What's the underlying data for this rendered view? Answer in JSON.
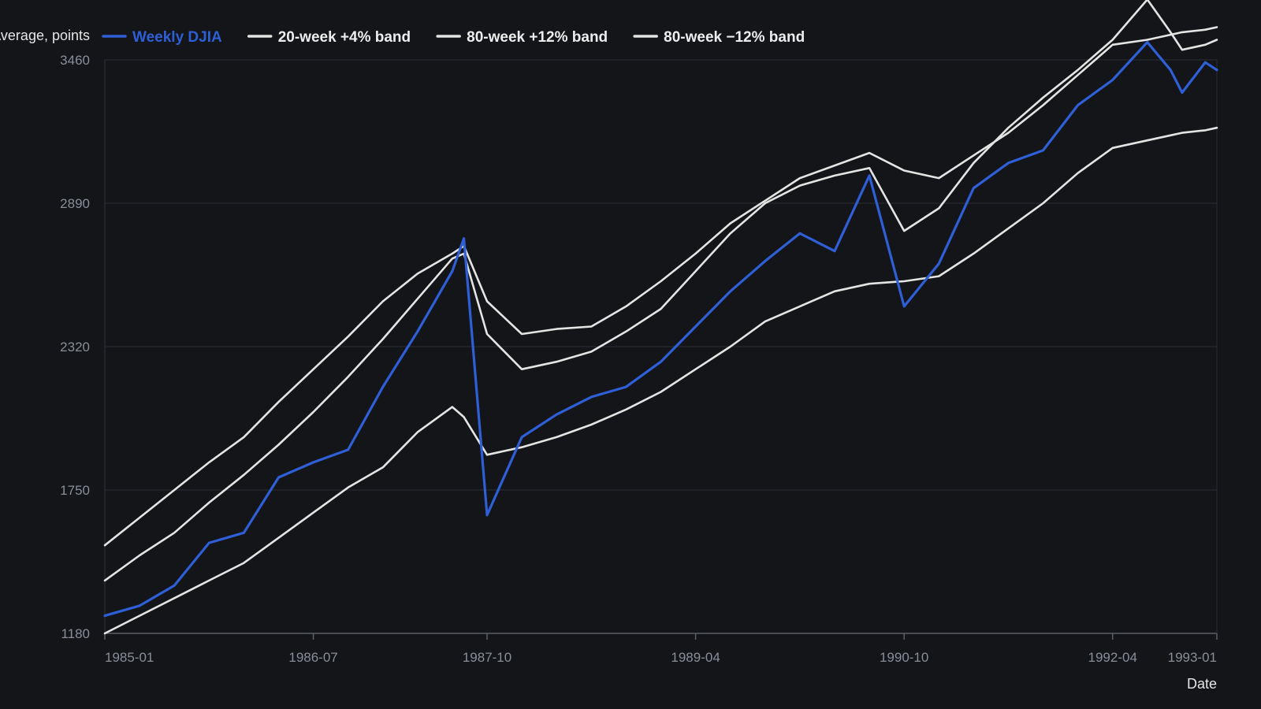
{
  "chart_data": {
    "type": "line",
    "xlabel": "Date",
    "ylabel": "Dow Jones Industrial Average, points",
    "x_tick_labels": [
      "1985-01",
      "1986-07",
      "1987-10",
      "1989-04",
      "1990-10",
      "1992-04",
      "1993-01"
    ],
    "y_ticks": [
      1180,
      1750,
      2320,
      2890,
      3460
    ],
    "ylim": [
      1180,
      3460
    ],
    "xlim": [
      "1985-01",
      "1993-01"
    ],
    "grid": true,
    "legend_position": "top",
    "x": [
      "1985-01",
      "1985-04",
      "1985-07",
      "1985-10",
      "1986-01",
      "1986-04",
      "1986-07",
      "1986-10",
      "1987-01",
      "1987-04",
      "1987-07",
      "1987-08",
      "1987-10",
      "1988-01",
      "1988-04",
      "1988-07",
      "1988-10",
      "1989-01",
      "1989-04",
      "1989-07",
      "1989-10",
      "1990-01",
      "1990-04",
      "1990-07",
      "1990-10",
      "1991-01",
      "1991-04",
      "1991-07",
      "1991-10",
      "1992-01",
      "1992-04",
      "1992-07",
      "1992-09",
      "1992-10",
      "1992-12",
      "1993-01"
    ],
    "series": [
      {
        "name": "Weekly DJIA",
        "color": "#2f5fd6",
        "values": [
          1250,
          1290,
          1370,
          1540,
          1580,
          1800,
          1860,
          1910,
          2160,
          2380,
          2620,
          2750,
          1650,
          1960,
          2050,
          2120,
          2160,
          2260,
          2400,
          2540,
          2660,
          2770,
          2700,
          3000,
          2480,
          2650,
          2950,
          3050,
          3100,
          3280,
          3380,
          3530,
          3420,
          3330,
          3450,
          3420
        ]
      },
      {
        "name": "20-week +4% band",
        "color": "#e4e4e2",
        "values": [
          1390,
          1490,
          1580,
          1700,
          1810,
          1930,
          2060,
          2200,
          2350,
          2510,
          2670,
          2690,
          2370,
          2230,
          2260,
          2300,
          2380,
          2470,
          2620,
          2770,
          2890,
          2960,
          3000,
          3030,
          2780,
          2870,
          3050,
          3190,
          3310,
          3420,
          3540,
          3700,
          3570,
          3500,
          3520,
          3540
        ]
      },
      {
        "name": "80-week +12% band",
        "color": "#e4e4e2",
        "values": [
          1530,
          1640,
          1750,
          1860,
          1960,
          2100,
          2230,
          2360,
          2500,
          2610,
          2690,
          2720,
          2500,
          2370,
          2390,
          2400,
          2480,
          2580,
          2690,
          2810,
          2900,
          2990,
          3040,
          3090,
          3020,
          2990,
          3080,
          3170,
          3280,
          3400,
          3520,
          3540,
          3560,
          3570,
          3580,
          3590
        ]
      },
      {
        "name": "80-week −12% band",
        "color": "#e4e4e2",
        "values": [
          1180,
          1250,
          1320,
          1390,
          1460,
          1560,
          1660,
          1760,
          1840,
          1980,
          2080,
          2040,
          1890,
          1920,
          1960,
          2010,
          2070,
          2140,
          2230,
          2320,
          2420,
          2480,
          2540,
          2570,
          2580,
          2600,
          2690,
          2790,
          2890,
          3010,
          3110,
          3140,
          3160,
          3170,
          3180,
          3190
        ]
      }
    ]
  }
}
